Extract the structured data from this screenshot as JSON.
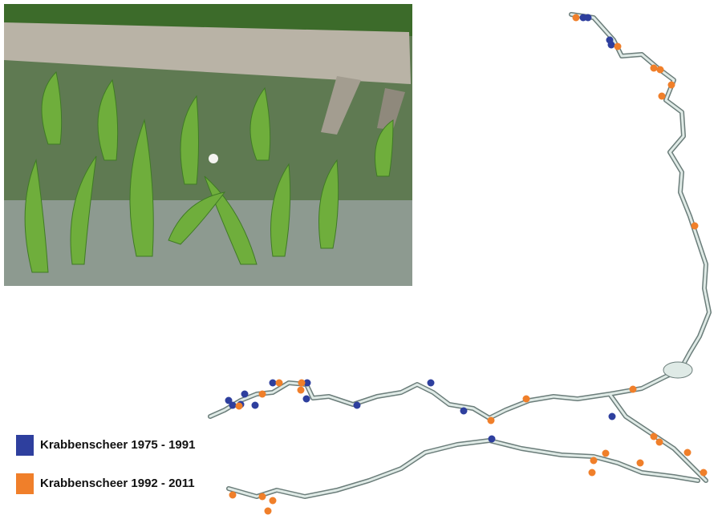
{
  "legend": {
    "items": [
      {
        "label": "Krabbenscheer 1975 - 1991",
        "color": "#2e3f9e"
      },
      {
        "label": "Krabbenscheer 1992 - 2011",
        "color": "#f07f2a"
      }
    ]
  }
}
